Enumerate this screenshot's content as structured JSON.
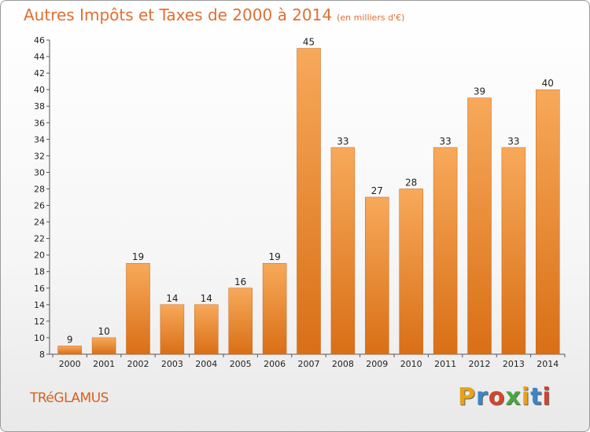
{
  "header": {
    "title": "Autres Impôts et Taxes de 2000 à 2014",
    "subtitle": "(en milliers d'€)"
  },
  "footer": {
    "commune": "TRéGLAMUS",
    "logo_text": "Proxiti",
    "logo_colors": [
      "#e8a21c",
      "#3b86c6",
      "#d6442a",
      "#49a843",
      "#e8a21c",
      "#3b86c6",
      "#d6442a"
    ]
  },
  "chart_data": {
    "type": "bar",
    "title": "Autres Impôts et Taxes de 2000 à 2014",
    "subtitle": "(en milliers d'€)",
    "categories": [
      "2000",
      "2001",
      "2002",
      "2003",
      "2004",
      "2005",
      "2006",
      "2007",
      "2008",
      "2009",
      "2010",
      "2011",
      "2012",
      "2013",
      "2014"
    ],
    "values": [
      9,
      10,
      19,
      14,
      14,
      16,
      19,
      45,
      33,
      27,
      28,
      33,
      39,
      33,
      40
    ],
    "ylim": [
      8,
      46
    ],
    "yticks": [
      8,
      10,
      12,
      14,
      16,
      18,
      20,
      22,
      24,
      26,
      28,
      30,
      32,
      34,
      36,
      38,
      40,
      42,
      44,
      46
    ],
    "grid": false,
    "bar_color": "#f28c28",
    "bar_color_light": "#f7a95a",
    "bar_color_dark": "#d96f16"
  }
}
